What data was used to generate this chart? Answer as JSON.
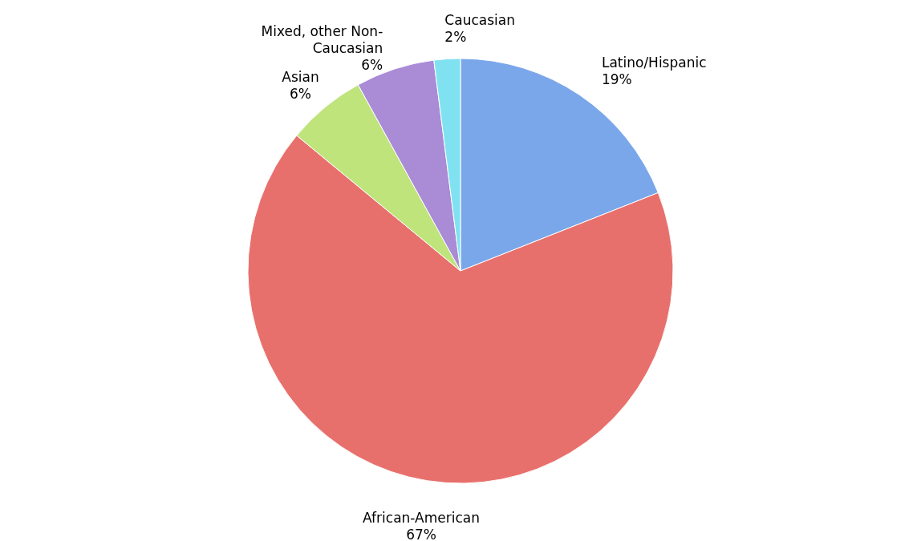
{
  "chart_data": {
    "type": "pie",
    "categories": [
      "Latino/Hispanic",
      "African-American",
      "Asian",
      "Mixed, other Non-Caucasian",
      "Caucasian"
    ],
    "values": [
      19,
      67,
      6,
      6,
      2
    ],
    "value_labels": [
      "19%",
      "67%",
      "6%",
      "6%",
      "2%"
    ],
    "colors": [
      "#7aa7ea",
      "#e8706c",
      "#bfe47c",
      "#a98bd6",
      "#80e2f0"
    ]
  }
}
